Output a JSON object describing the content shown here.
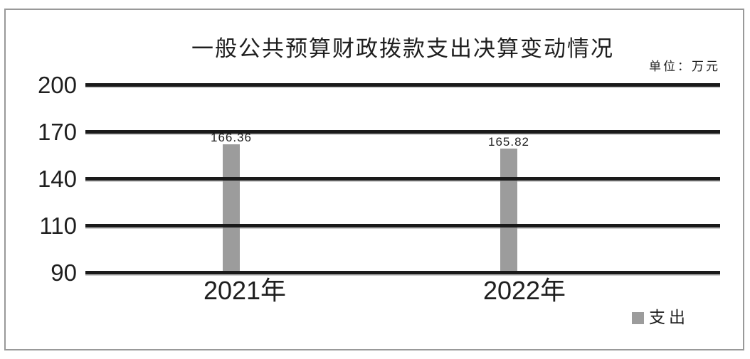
{
  "colors": {
    "bar": "#9c9c9c",
    "gridline": "#1a1a1a",
    "text": "#1f1f1f",
    "frame_border": "#999999",
    "background": "#ffffff"
  },
  "chart_data": {
    "type": "bar",
    "title": "一般公共预算财政拨款支出决算变动情况",
    "unit_label": "单位：万元",
    "categories": [
      "2021年",
      "2022年"
    ],
    "series": [
      {
        "name": "支出",
        "values": [
          166.36,
          165.82
        ]
      }
    ],
    "value_labels": [
      "166.36",
      "165.82"
    ],
    "y_ticks": [
      "200",
      "170",
      "140",
      "110",
      "90"
    ],
    "axis": {
      "y_tick_values": [
        200,
        170,
        140,
        110,
        90
      ],
      "tick_spacing": "uniform",
      "baseline_value": 90
    },
    "grid": true,
    "legend": {
      "label": "支出",
      "position": "bottom-right",
      "swatch_color": "#9c9c9c"
    }
  }
}
